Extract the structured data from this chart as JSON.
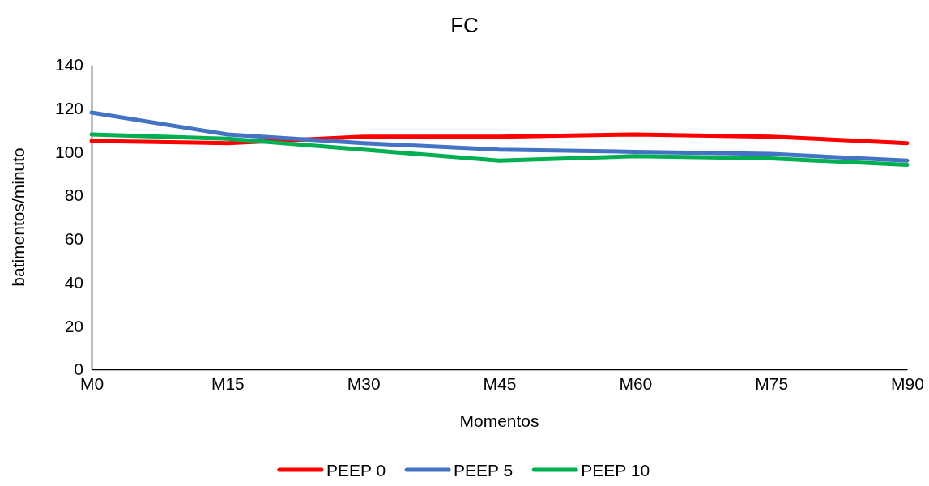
{
  "chart_data": {
    "type": "line",
    "title": "FC",
    "xlabel": "Momentos",
    "ylabel": "batimentos/minuto",
    "categories": [
      "M0",
      "M15",
      "M30",
      "M45",
      "M60",
      "M75",
      "M90"
    ],
    "series": [
      {
        "name": "PEEP 0",
        "color": "#ff0000",
        "values": [
          105,
          104,
          107,
          107,
          108,
          107,
          104
        ]
      },
      {
        "name": "PEEP 5",
        "color": "#4472c4",
        "values": [
          118,
          108,
          104,
          101,
          100,
          99,
          96
        ]
      },
      {
        "name": "PEEP 10",
        "color": "#00b050",
        "values": [
          108,
          106,
          101,
          96,
          98,
          97,
          94
        ]
      }
    ],
    "ylim": [
      0,
      140
    ],
    "yticks": [
      0,
      20,
      40,
      60,
      80,
      100,
      120,
      140
    ],
    "grid": false,
    "legend": "bottom",
    "marker": "none",
    "line_style": "solid"
  }
}
